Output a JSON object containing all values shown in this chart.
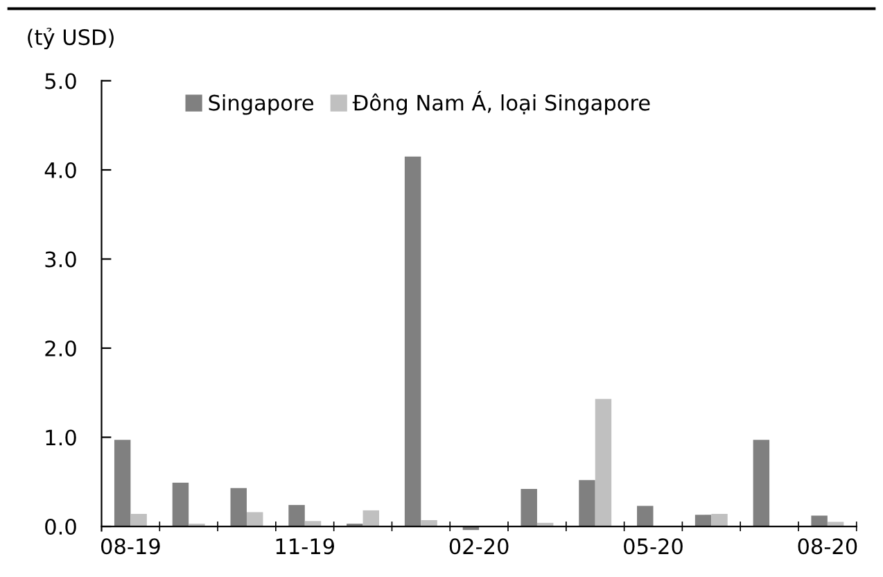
{
  "chart_data": {
    "type": "bar",
    "ylabel": "(tỷ USD)",
    "categories": [
      "08-19",
      null,
      null,
      "11-19",
      null,
      null,
      "02-20",
      null,
      null,
      "05-20",
      null,
      null,
      "08-20"
    ],
    "series": [
      {
        "name": "Singapore",
        "color": "#808080",
        "values": [
          0.97,
          0.49,
          0.43,
          0.24,
          0.03,
          4.15,
          -0.04,
          0.42,
          0.52,
          0.23,
          0.13,
          0.97,
          0.12
        ]
      },
      {
        "name": "Đông Nam Á, loại Singapore",
        "color": "#c0c0c0",
        "values": [
          0.14,
          0.03,
          0.16,
          0.06,
          0.18,
          0.07,
          null,
          0.04,
          1.43,
          null,
          0.14,
          null,
          0.05
        ]
      }
    ],
    "ylim": [
      -0.05,
      5.0
    ],
    "yticks": [
      {
        "value": 0,
        "label": "0.0"
      },
      {
        "value": 1,
        "label": "1.0"
      },
      {
        "value": 2,
        "label": "2.0"
      },
      {
        "value": 3,
        "label": "3.0"
      },
      {
        "value": 4,
        "label": "4.0"
      },
      {
        "value": 5,
        "label": "5.0"
      }
    ],
    "grid": false,
    "legend": "top"
  }
}
